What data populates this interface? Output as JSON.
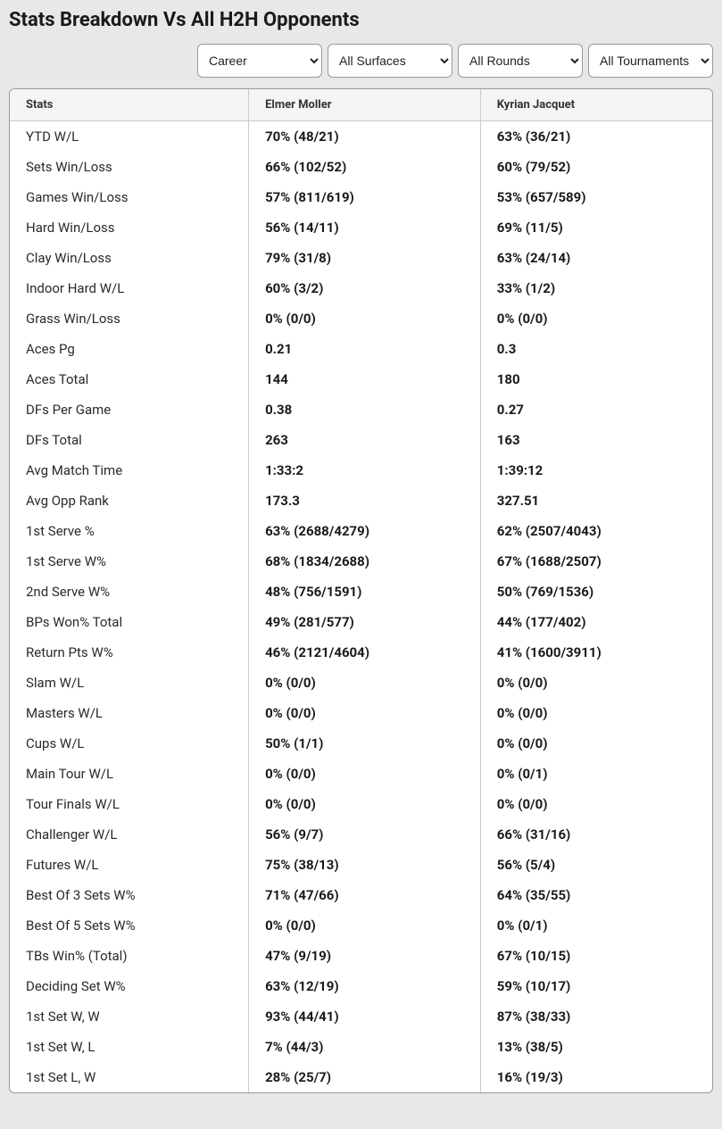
{
  "title": "Stats Breakdown Vs All H2H Opponents",
  "filters": {
    "period": "Career",
    "surface": "All Surfaces",
    "round": "All Rounds",
    "tournament": "All Tournaments"
  },
  "columns": {
    "stats": "Stats",
    "player1": "Elmer Moller",
    "player2": "Kyrian Jacquet"
  },
  "rows": [
    {
      "stat": "YTD W/L",
      "p1": "70% (48/21)",
      "p2": "63% (36/21)"
    },
    {
      "stat": "Sets Win/Loss",
      "p1": "66% (102/52)",
      "p2": "60% (79/52)"
    },
    {
      "stat": "Games Win/Loss",
      "p1": "57% (811/619)",
      "p2": "53% (657/589)"
    },
    {
      "stat": "Hard Win/Loss",
      "p1": "56% (14/11)",
      "p2": "69% (11/5)"
    },
    {
      "stat": "Clay Win/Loss",
      "p1": "79% (31/8)",
      "p2": "63% (24/14)"
    },
    {
      "stat": "Indoor Hard W/L",
      "p1": "60% (3/2)",
      "p2": "33% (1/2)"
    },
    {
      "stat": "Grass Win/Loss",
      "p1": "0% (0/0)",
      "p2": "0% (0/0)"
    },
    {
      "stat": "Aces Pg",
      "p1": "0.21",
      "p2": "0.3"
    },
    {
      "stat": "Aces Total",
      "p1": "144",
      "p2": "180"
    },
    {
      "stat": "DFs Per Game",
      "p1": "0.38",
      "p2": "0.27"
    },
    {
      "stat": "DFs Total",
      "p1": "263",
      "p2": "163"
    },
    {
      "stat": "Avg Match Time",
      "p1": "1:33:2",
      "p2": "1:39:12"
    },
    {
      "stat": "Avg Opp Rank",
      "p1": "173.3",
      "p2": "327.51"
    },
    {
      "stat": "1st Serve %",
      "p1": "63% (2688/4279)",
      "p2": "62% (2507/4043)"
    },
    {
      "stat": "1st Serve W%",
      "p1": "68% (1834/2688)",
      "p2": "67% (1688/2507)"
    },
    {
      "stat": "2nd Serve W%",
      "p1": "48% (756/1591)",
      "p2": "50% (769/1536)"
    },
    {
      "stat": "BPs Won% Total",
      "p1": "49% (281/577)",
      "p2": "44% (177/402)"
    },
    {
      "stat": "Return Pts W%",
      "p1": "46% (2121/4604)",
      "p2": "41% (1600/3911)"
    },
    {
      "stat": "Slam W/L",
      "p1": "0% (0/0)",
      "p2": "0% (0/0)"
    },
    {
      "stat": "Masters W/L",
      "p1": "0% (0/0)",
      "p2": "0% (0/0)"
    },
    {
      "stat": "Cups W/L",
      "p1": "50% (1/1)",
      "p2": "0% (0/0)"
    },
    {
      "stat": "Main Tour W/L",
      "p1": "0% (0/0)",
      "p2": "0% (0/1)"
    },
    {
      "stat": "Tour Finals W/L",
      "p1": "0% (0/0)",
      "p2": "0% (0/0)"
    },
    {
      "stat": "Challenger W/L",
      "p1": "56% (9/7)",
      "p2": "66% (31/16)"
    },
    {
      "stat": "Futures W/L",
      "p1": "75% (38/13)",
      "p2": "56% (5/4)"
    },
    {
      "stat": "Best Of 3 Sets W%",
      "p1": "71% (47/66)",
      "p2": "64% (35/55)"
    },
    {
      "stat": "Best Of 5 Sets W%",
      "p1": "0% (0/0)",
      "p2": "0% (0/1)"
    },
    {
      "stat": "TBs Win% (Total)",
      "p1": "47% (9/19)",
      "p2": "67% (10/15)"
    },
    {
      "stat": "Deciding Set W%",
      "p1": "63% (12/19)",
      "p2": "59% (10/17)"
    },
    {
      "stat": "1st Set W, W",
      "p1": "93% (44/41)",
      "p2": "87% (38/33)"
    },
    {
      "stat": "1st Set W, L",
      "p1": "7% (44/3)",
      "p2": "13% (38/5)"
    },
    {
      "stat": "1st Set L, W",
      "p1": "28% (25/7)",
      "p2": "16% (19/3)"
    }
  ]
}
